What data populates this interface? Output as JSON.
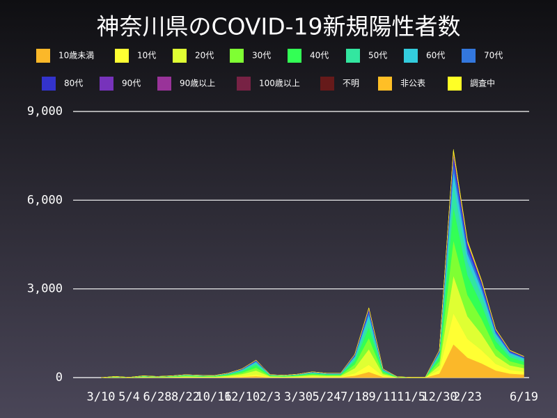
{
  "chart_data": {
    "type": "stacked-area",
    "title": "神奈川県のCOVID-19新規陽性者数",
    "categories": [
      "3/10",
      null,
      "5/4",
      null,
      "6/28",
      null,
      "8/22",
      null,
      "10/16",
      null,
      "12/10",
      null,
      "2/3",
      null,
      "3/30",
      null,
      "5/24",
      null,
      "7/18",
      null,
      "9/11",
      null,
      "11/5",
      null,
      "12/30",
      null,
      "2/23",
      null,
      null,
      null,
      "6/19"
    ],
    "ylim": [
      0,
      9000
    ],
    "yticks": [
      {
        "value": 0,
        "label": "0"
      },
      {
        "value": 3000,
        "label": "3,000"
      },
      {
        "value": 6000,
        "label": "6,000"
      },
      {
        "value": 9000,
        "label": "9,000"
      }
    ],
    "grid": true,
    "series": [
      {
        "name": "10歳未満",
        "color": "#fbb829",
        "values": [
          0,
          3,
          1,
          5,
          3,
          5,
          8,
          6,
          6,
          12,
          24,
          48,
          8,
          6,
          10,
          16,
          12,
          12,
          64,
          192,
          24,
          2,
          1,
          1,
          135,
          1125,
          675,
          480,
          240,
          135,
          105
        ]
      },
      {
        "name": "10代",
        "color": "#ffff33",
        "values": [
          0,
          4,
          1,
          6,
          4,
          6,
          10,
          8,
          7,
          15,
          30,
          60,
          10,
          8,
          12,
          20,
          15,
          15,
          80,
          240,
          30,
          3,
          1,
          1,
          126,
          1050,
          630,
          448,
          224,
          126,
          98
        ]
      },
      {
        "name": "20代",
        "color": "#dfff33",
        "values": [
          0,
          9,
          2,
          13,
          9,
          13,
          22,
          18,
          15,
          33,
          66,
          132,
          22,
          18,
          26,
          44,
          33,
          33,
          176,
          528,
          66,
          7,
          2,
          2,
          153,
          1275,
          765,
          544,
          272,
          153,
          119
        ]
      },
      {
        "name": "30代",
        "color": "#7fff33",
        "values": [
          0,
          6,
          2,
          10,
          6,
          10,
          16,
          13,
          11,
          24,
          48,
          96,
          16,
          13,
          19,
          32,
          24,
          24,
          128,
          384,
          48,
          5,
          2,
          2,
          144,
          1200,
          720,
          512,
          256,
          144,
          112
        ]
      },
      {
        "name": "40代",
        "color": "#33ff55",
        "values": [
          0,
          6,
          2,
          9,
          6,
          9,
          15,
          12,
          11,
          23,
          45,
          90,
          15,
          12,
          18,
          30,
          23,
          23,
          120,
          360,
          45,
          5,
          2,
          2,
          135,
          1125,
          675,
          480,
          240,
          135,
          105
        ]
      },
      {
        "name": "50代",
        "color": "#33e6a0",
        "values": [
          0,
          5,
          1,
          7,
          5,
          7,
          12,
          10,
          8,
          18,
          36,
          72,
          12,
          10,
          14,
          24,
          18,
          18,
          96,
          288,
          36,
          4,
          1,
          1,
          90,
          750,
          450,
          320,
          160,
          90,
          70
        ]
      },
      {
        "name": "60代",
        "color": "#33ccdd",
        "values": [
          0,
          2,
          1,
          4,
          2,
          4,
          6,
          5,
          4,
          9,
          18,
          36,
          6,
          5,
          7,
          12,
          9,
          9,
          48,
          144,
          18,
          2,
          0,
          0,
          54,
          450,
          270,
          192,
          96,
          54,
          42
        ]
      },
      {
        "name": "70代",
        "color": "#3377dd",
        "values": [
          0,
          2,
          0,
          2,
          2,
          2,
          4,
          3,
          3,
          6,
          12,
          24,
          4,
          3,
          5,
          8,
          6,
          6,
          32,
          96,
          12,
          1,
          0,
          0,
          36,
          300,
          180,
          128,
          64,
          36,
          28
        ]
      },
      {
        "name": "80代",
        "color": "#3333cc",
        "values": [
          0,
          1,
          0,
          2,
          1,
          2,
          3,
          2,
          2,
          5,
          9,
          18,
          3,
          2,
          4,
          6,
          5,
          5,
          24,
          72,
          9,
          1,
          0,
          0,
          27,
          225,
          135,
          96,
          48,
          27,
          21
        ]
      },
      {
        "name": "90代",
        "color": "#7733bb",
        "values": [
          0,
          0,
          0,
          1,
          0,
          1,
          1,
          1,
          1,
          2,
          3,
          6,
          1,
          1,
          1,
          2,
          2,
          2,
          8,
          24,
          3,
          0,
          0,
          0,
          9,
          75,
          45,
          32,
          16,
          9,
          7
        ]
      },
      {
        "name": "90歳以上",
        "color": "#993399",
        "values": [
          0,
          0,
          0,
          0,
          0,
          0,
          0,
          0,
          0,
          0,
          1,
          2,
          0,
          0,
          0,
          0,
          0,
          0,
          2,
          5,
          1,
          0,
          0,
          0,
          2,
          15,
          9,
          6,
          3,
          2,
          1
        ]
      },
      {
        "name": "100歳以上",
        "color": "#772244",
        "values": [
          0,
          0,
          0,
          0,
          0,
          0,
          0,
          0,
          0,
          0,
          0,
          0,
          0,
          0,
          0,
          0,
          0,
          0,
          0,
          0,
          0,
          0,
          0,
          0,
          0,
          1,
          0,
          0,
          0,
          0,
          0
        ]
      },
      {
        "name": "不明",
        "color": "#661a1a",
        "values": [
          0,
          0,
          0,
          0,
          0,
          0,
          0,
          0,
          0,
          0,
          0,
          1,
          0,
          0,
          0,
          0,
          0,
          0,
          0,
          3,
          0,
          0,
          0,
          0,
          0,
          5,
          0,
          0,
          0,
          0,
          0
        ]
      },
      {
        "name": "非公表",
        "color": "#ffbf26",
        "values": [
          0,
          1,
          0,
          1,
          1,
          1,
          1,
          1,
          1,
          2,
          3,
          6,
          1,
          1,
          1,
          2,
          2,
          2,
          8,
          24,
          3,
          0,
          0,
          0,
          9,
          75,
          45,
          32,
          16,
          9,
          7
        ]
      },
      {
        "name": "調査中",
        "color": "#ffff26",
        "values": [
          0,
          0,
          0,
          0,
          0,
          0,
          0,
          0,
          0,
          0,
          0,
          0,
          0,
          0,
          0,
          0,
          0,
          0,
          0,
          0,
          0,
          0,
          0,
          0,
          5,
          50,
          30,
          20,
          10,
          5,
          4
        ]
      }
    ]
  }
}
